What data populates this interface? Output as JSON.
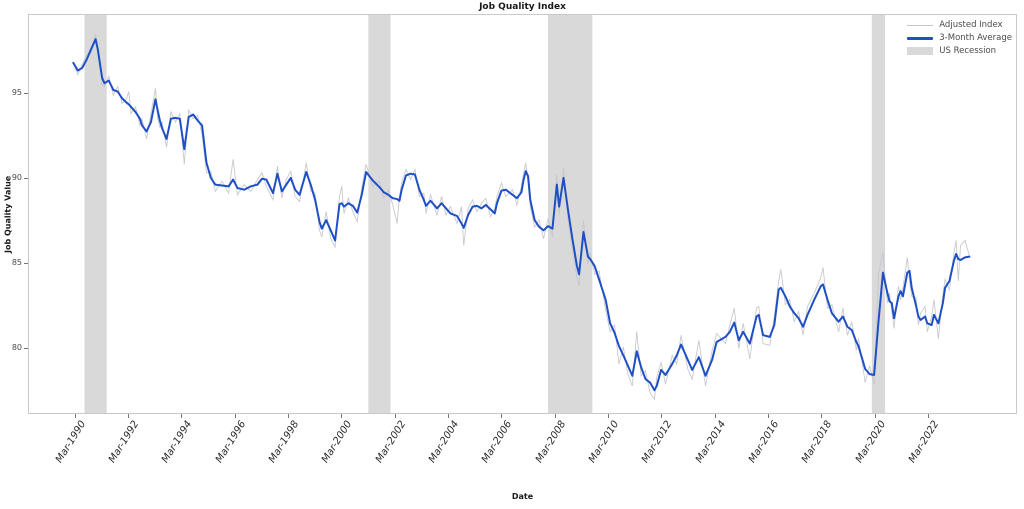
{
  "title": "Job Quality Index",
  "colors": {
    "three_month_avg_line": "#1f4fc5",
    "adjusted_index_line": "#c3c6cb",
    "recession_band": "#d9d9d9",
    "plot_border": "#c9c9c9",
    "tick_color": "#777777",
    "text_dark": "#1a1a1a"
  },
  "legend": {
    "entries": [
      {
        "label": "Adjusted Index",
        "style": "thin-line"
      },
      {
        "label": "3-Month Average",
        "style": "thick-line"
      },
      {
        "label": "US Recession",
        "style": "patch"
      }
    ]
  },
  "chart_data": {
    "type": "line",
    "title": "Job Quality Index",
    "xlabel": "Date",
    "ylabel": "Job Quality Value",
    "grid": false,
    "legend_position": "upper right",
    "y_ticks": [
      95,
      90,
      85,
      80
    ],
    "ylim": [
      76.1,
      99.63
    ],
    "xlim_months": [
      "1988-06",
      "2025-07"
    ],
    "x_tick_labels": [
      "Mar-1990",
      "Mar-1992",
      "Mar-1994",
      "Mar-1996",
      "Mar-1998",
      "Mar-2000",
      "Mar-2002",
      "Mar-2004",
      "Mar-2006",
      "Mar-2008",
      "Mar-2010",
      "Mar-2012",
      "Mar-2014",
      "Mar-2016",
      "Mar-2018",
      "Mar-2020",
      "Mar-2022"
    ],
    "x_tick_months": [
      "1990-03",
      "1992-03",
      "1994-03",
      "1996-03",
      "1998-03",
      "2000-03",
      "2002-03",
      "2004-03",
      "2006-03",
      "2008-03",
      "2010-03",
      "2012-03",
      "2014-03",
      "2016-03",
      "2018-03",
      "2020-03",
      "2022-03"
    ],
    "recessions": [
      [
        "1990-07",
        "1991-05"
      ],
      [
        "2001-03",
        "2002-01"
      ],
      [
        "2007-12",
        "2009-08"
      ],
      [
        "2020-02",
        "2020-08"
      ]
    ],
    "series_names": [
      "3-Month Average",
      "Adjusted Index"
    ],
    "point_format": [
      "date",
      "three_month_avg",
      "adjusted_index"
    ],
    "points": [
      [
        "1990-02",
        96.8,
        96.8
      ],
      [
        "1990-04",
        96.35,
        96.1
      ],
      [
        "1990-06",
        96.5,
        96.7
      ],
      [
        "1990-08",
        97.0,
        97.3
      ],
      [
        "1990-10",
        97.6,
        97.4
      ],
      [
        "1990-12",
        98.2,
        98.5
      ],
      [
        "1991-01",
        97.6,
        97.9
      ],
      [
        "1991-03",
        95.9,
        95.5
      ],
      [
        "1991-04",
        95.6,
        95.4
      ],
      [
        "1991-06",
        95.75,
        96.0
      ],
      [
        "1991-08",
        95.2,
        94.9
      ],
      [
        "1991-10",
        95.1,
        95.4
      ],
      [
        "1991-12",
        94.7,
        94.4
      ],
      [
        "1992-02",
        94.45,
        94.7
      ],
      [
        "1992-03",
        94.35,
        95.1
      ],
      [
        "1992-04",
        94.2,
        93.8
      ],
      [
        "1992-06",
        93.9,
        94.2
      ],
      [
        "1992-08",
        93.5,
        93.1
      ],
      [
        "1992-09",
        93.1,
        93.5
      ],
      [
        "1992-11",
        92.75,
        92.3
      ],
      [
        "1993-01",
        93.3,
        93.8
      ],
      [
        "1993-03",
        94.65,
        95.3
      ],
      [
        "1993-04",
        94.0,
        93.5
      ],
      [
        "1993-05",
        93.4,
        93.0
      ],
      [
        "1993-06",
        92.95,
        93.3
      ],
      [
        "1993-08",
        92.3,
        91.8
      ],
      [
        "1993-10",
        93.5,
        93.9
      ],
      [
        "1993-12",
        93.55,
        93.3
      ],
      [
        "1994-02",
        93.5,
        93.8
      ],
      [
        "1994-04",
        91.7,
        90.8
      ],
      [
        "1994-06",
        93.6,
        94.0
      ],
      [
        "1994-08",
        93.75,
        93.5
      ],
      [
        "1994-10",
        93.4,
        93.7
      ],
      [
        "1994-12",
        93.1,
        92.6
      ],
      [
        "1995-02",
        90.9,
        90.3
      ],
      [
        "1995-04",
        90.0,
        90.4
      ],
      [
        "1995-06",
        89.6,
        89.2
      ],
      [
        "1995-09",
        89.55,
        89.8
      ],
      [
        "1995-12",
        89.5,
        89.1
      ],
      [
        "1996-02",
        89.9,
        91.1
      ],
      [
        "1996-04",
        89.4,
        89.0
      ],
      [
        "1996-07",
        89.3,
        89.6
      ],
      [
        "1996-10",
        89.5,
        89.2
      ],
      [
        "1997-01",
        89.6,
        89.9
      ],
      [
        "1997-03",
        89.95,
        90.3
      ],
      [
        "1997-05",
        89.9,
        89.5
      ],
      [
        "1997-08",
        89.1,
        88.7
      ],
      [
        "1997-10",
        90.25,
        90.7
      ],
      [
        "1997-12",
        89.2,
        88.8
      ],
      [
        "1998-02",
        89.6,
        89.9
      ],
      [
        "1998-04",
        90.0,
        90.4
      ],
      [
        "1998-06",
        89.3,
        88.9
      ],
      [
        "1998-08",
        89.0,
        88.6
      ],
      [
        "1998-11",
        90.35,
        90.9
      ],
      [
        "1999-01",
        89.6,
        89.2
      ],
      [
        "1999-03",
        88.7,
        89.1
      ],
      [
        "1999-05",
        87.4,
        86.9
      ],
      [
        "1999-06",
        87.0,
        86.5
      ],
      [
        "1999-08",
        87.5,
        88.0
      ],
      [
        "1999-10",
        86.9,
        86.4
      ],
      [
        "1999-12",
        86.3,
        85.9
      ],
      [
        "2000-02",
        88.45,
        88.9
      ],
      [
        "2000-03",
        88.5,
        89.5
      ],
      [
        "2000-04",
        88.3,
        87.9
      ],
      [
        "2000-06",
        88.5,
        88.8
      ],
      [
        "2000-08",
        88.35,
        88.0
      ],
      [
        "2000-10",
        87.95,
        87.4
      ],
      [
        "2000-12",
        89.0,
        89.4
      ],
      [
        "2001-02",
        90.35,
        90.8
      ],
      [
        "2001-05",
        89.85,
        89.5
      ],
      [
        "2001-08",
        89.45,
        89.8
      ],
      [
        "2001-10",
        89.15,
        88.8
      ],
      [
        "2001-12",
        89.0,
        89.3
      ],
      [
        "2002-02",
        88.8,
        88.4
      ],
      [
        "2002-04",
        88.75,
        87.3
      ],
      [
        "2002-05",
        88.65,
        88.9
      ],
      [
        "2002-06",
        89.3,
        89.7
      ],
      [
        "2002-08",
        90.15,
        90.5
      ],
      [
        "2002-10",
        90.25,
        89.9
      ],
      [
        "2002-12",
        90.2,
        90.5
      ],
      [
        "2003-02",
        89.3,
        88.9
      ],
      [
        "2003-04",
        88.7,
        89.1
      ],
      [
        "2003-05",
        88.35,
        87.9
      ],
      [
        "2003-07",
        88.65,
        89.0
      ],
      [
        "2003-10",
        88.2,
        87.8
      ],
      [
        "2003-12",
        88.5,
        88.9
      ],
      [
        "2004-02",
        88.2,
        87.8
      ],
      [
        "2004-04",
        87.9,
        88.3
      ],
      [
        "2004-07",
        87.75,
        87.3
      ],
      [
        "2004-09",
        87.3,
        88.3
      ],
      [
        "2004-10",
        87.05,
        86.0
      ],
      [
        "2004-12",
        87.8,
        88.2
      ],
      [
        "2005-02",
        88.3,
        88.7
      ],
      [
        "2005-04",
        88.35,
        88.0
      ],
      [
        "2005-06",
        88.2,
        88.5
      ],
      [
        "2005-08",
        88.4,
        88.8
      ],
      [
        "2005-10",
        88.15,
        87.7
      ],
      [
        "2005-12",
        87.9,
        88.2
      ],
      [
        "2006-01",
        88.5,
        88.9
      ],
      [
        "2006-03",
        89.25,
        89.7
      ],
      [
        "2006-05",
        89.3,
        88.9
      ],
      [
        "2006-08",
        89.0,
        89.3
      ],
      [
        "2006-10",
        88.8,
        88.4
      ],
      [
        "2006-12",
        89.15,
        89.5
      ],
      [
        "2007-01",
        89.9,
        90.3
      ],
      [
        "2007-02",
        90.4,
        90.9
      ],
      [
        "2007-03",
        90.1,
        89.7
      ],
      [
        "2007-04",
        88.7,
        88.3
      ],
      [
        "2007-06",
        87.5,
        87.1
      ],
      [
        "2007-08",
        87.1,
        87.5
      ],
      [
        "2007-10",
        86.9,
        86.4
      ],
      [
        "2007-12",
        87.15,
        87.6
      ],
      [
        "2008-02",
        87.0,
        86.5
      ],
      [
        "2008-04",
        89.6,
        90.2
      ],
      [
        "2008-05",
        88.3,
        87.8
      ],
      [
        "2008-07",
        90.0,
        90.6
      ],
      [
        "2008-09",
        88.1,
        87.5
      ],
      [
        "2008-11",
        86.4,
        85.8
      ],
      [
        "2009-01",
        84.8,
        84.1
      ],
      [
        "2009-02",
        84.3,
        83.6
      ],
      [
        "2009-04",
        86.8,
        87.5
      ],
      [
        "2009-06",
        85.35,
        84.9
      ],
      [
        "2009-07",
        85.2,
        85.6
      ],
      [
        "2009-09",
        84.8,
        84.3
      ],
      [
        "2009-11",
        84.0,
        84.5
      ],
      [
        "2010-02",
        82.8,
        82.2
      ],
      [
        "2010-04",
        81.4,
        80.9
      ],
      [
        "2010-06",
        80.85,
        81.3
      ],
      [
        "2010-08",
        80.05,
        79.0
      ],
      [
        "2010-10",
        79.5,
        80.0
      ],
      [
        "2010-12",
        78.9,
        78.4
      ],
      [
        "2011-02",
        78.3,
        77.7
      ],
      [
        "2011-04",
        79.75,
        80.9
      ],
      [
        "2011-06",
        78.8,
        78.3
      ],
      [
        "2011-08",
        78.1,
        78.6
      ],
      [
        "2011-10",
        77.9,
        77.3
      ],
      [
        "2011-12",
        77.45,
        76.9
      ],
      [
        "2012-01",
        77.7,
        78.2
      ],
      [
        "2012-03",
        78.65,
        79.1
      ],
      [
        "2012-05",
        78.35,
        77.8
      ],
      [
        "2012-08",
        79.0,
        79.5
      ],
      [
        "2012-10",
        79.5,
        79.0
      ],
      [
        "2012-12",
        80.15,
        80.7
      ],
      [
        "2013-03",
        79.25,
        78.7
      ],
      [
        "2013-05",
        78.65,
        78.1
      ],
      [
        "2013-08",
        79.4,
        80.4
      ],
      [
        "2013-11",
        78.3,
        77.7
      ],
      [
        "2014-02",
        79.25,
        79.8
      ],
      [
        "2014-04",
        80.3,
        80.8
      ],
      [
        "2014-08",
        80.6,
        80.2
      ],
      [
        "2014-10",
        80.9,
        81.3
      ],
      [
        "2014-12",
        81.45,
        82.3
      ],
      [
        "2015-02",
        80.4,
        79.9
      ],
      [
        "2015-04",
        80.9,
        81.4
      ],
      [
        "2015-07",
        80.2,
        79.3
      ],
      [
        "2015-10",
        81.8,
        82.3
      ],
      [
        "2015-11",
        81.9,
        82.4
      ],
      [
        "2016-01",
        80.7,
        80.2
      ],
      [
        "2016-04",
        80.6,
        80.1
      ],
      [
        "2016-06",
        81.3,
        81.8
      ],
      [
        "2016-08",
        83.4,
        83.9
      ],
      [
        "2016-09",
        83.5,
        84.6
      ],
      [
        "2016-11",
        83.0,
        82.5
      ],
      [
        "2017-01",
        82.4,
        82.8
      ],
      [
        "2017-03",
        82.0,
        81.5
      ],
      [
        "2017-05",
        81.7,
        82.1
      ],
      [
        "2017-07",
        81.2,
        80.7
      ],
      [
        "2017-09",
        81.9,
        82.4
      ],
      [
        "2017-12",
        82.8,
        83.2
      ],
      [
        "2018-03",
        83.6,
        84.1
      ],
      [
        "2018-04",
        83.7,
        84.7
      ],
      [
        "2018-06",
        82.8,
        82.3
      ],
      [
        "2018-08",
        82.0,
        82.5
      ],
      [
        "2018-11",
        81.5,
        80.9
      ],
      [
        "2019-01",
        81.8,
        82.3
      ],
      [
        "2019-03",
        81.2,
        80.7
      ],
      [
        "2019-05",
        81.0,
        81.5
      ],
      [
        "2019-07",
        80.3,
        79.8
      ],
      [
        "2019-08",
        80.05,
        80.5
      ],
      [
        "2019-11",
        78.7,
        77.9
      ],
      [
        "2020-01",
        78.4,
        78.9
      ],
      [
        "2020-03",
        78.35,
        77.8
      ],
      [
        "2020-05",
        81.5,
        84.3
      ],
      [
        "2020-07",
        84.4,
        85.6
      ],
      [
        "2020-09",
        83.2,
        82.6
      ],
      [
        "2020-10",
        82.7,
        83.2
      ],
      [
        "2020-11",
        82.6,
        82.1
      ],
      [
        "2020-12",
        81.7,
        81.1
      ],
      [
        "2021-02",
        83.0,
        83.6
      ],
      [
        "2021-03",
        83.3,
        82.8
      ],
      [
        "2021-04",
        83.0,
        83.5
      ],
      [
        "2021-06",
        84.4,
        85.3
      ],
      [
        "2021-07",
        84.5,
        83.9
      ],
      [
        "2021-08",
        83.5,
        83.0
      ],
      [
        "2021-10",
        82.4,
        82.9
      ],
      [
        "2021-11",
        81.8,
        81.3
      ],
      [
        "2021-12",
        81.6,
        82.0
      ],
      [
        "2022-02",
        81.8,
        82.4
      ],
      [
        "2022-03",
        81.4,
        80.9
      ],
      [
        "2022-05",
        81.3,
        81.8
      ],
      [
        "2022-06",
        81.9,
        82.8
      ],
      [
        "2022-08",
        81.4,
        80.5
      ],
      [
        "2022-10",
        82.6,
        83.1
      ],
      [
        "2022-11",
        83.5,
        84.0
      ],
      [
        "2023-01",
        83.9,
        83.4
      ],
      [
        "2023-03",
        85.1,
        85.6
      ],
      [
        "2023-04",
        85.5,
        86.3
      ],
      [
        "2023-05",
        85.2,
        83.9
      ],
      [
        "2023-06",
        85.15,
        86.0
      ],
      [
        "2023-08",
        85.3,
        86.3
      ],
      [
        "2023-10",
        85.35,
        85.4
      ]
    ]
  }
}
